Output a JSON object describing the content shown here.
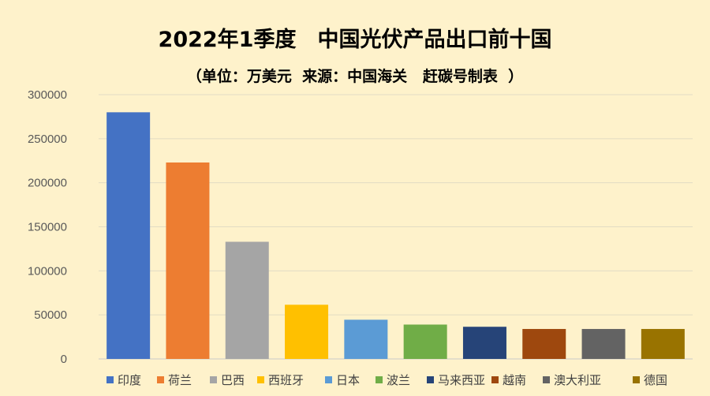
{
  "chart_data": {
    "type": "bar",
    "title": "2022年1季度　中国光伏产品出口前十国",
    "subtitle": "（单位：万美元  来源：中国海关   赶碳号制表  ）",
    "categories": [
      "印度",
      "荷兰",
      "巴西",
      "西班牙",
      "日本",
      "波兰",
      "马来西亚",
      "越南",
      "澳大利亚",
      "德国"
    ],
    "values": [
      280000,
      223000,
      133000,
      61500,
      44500,
      39000,
      36500,
      34000,
      34000,
      34000
    ],
    "colors": [
      "#4472C4",
      "#ED7D31",
      "#A5A5A5",
      "#FFC000",
      "#5B9BD5",
      "#70AD47",
      "#264478",
      "#9E480E",
      "#636363",
      "#997300"
    ],
    "y_ticks": [
      "0",
      "50000",
      "100000",
      "150000",
      "200000",
      "250000",
      "300000"
    ],
    "ylim": [
      0,
      300000
    ],
    "grid": true,
    "legend_position": "bottom"
  }
}
